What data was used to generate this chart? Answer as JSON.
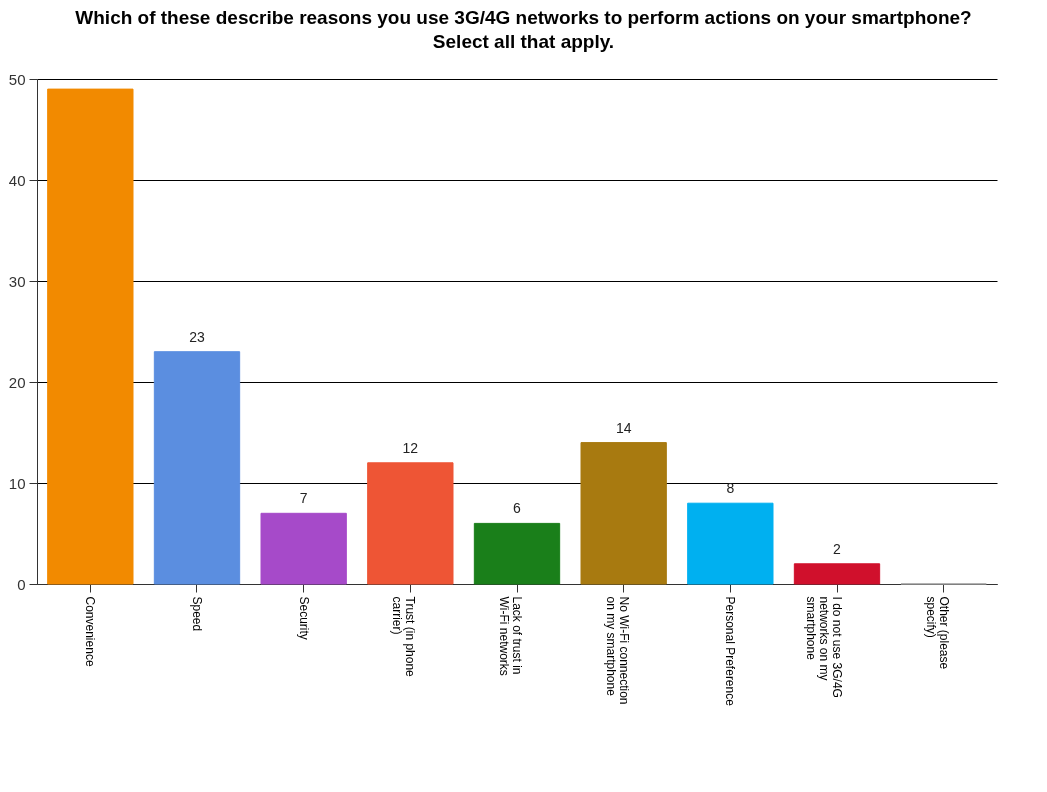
{
  "chart_data": {
    "type": "bar",
    "title": "Which of these describe reasons you use 3G/4G networks to perform actions on your smartphone? Select all that apply.",
    "categories": [
      "Convenience",
      "Speed",
      "Security",
      "Trust (in phone carrier)",
      "Lack of trust in Wi-Fi networks",
      "No Wi-Fi connection on my smartphone",
      "Personal Preference",
      "I do not use 3G/4G networks on my smartphone",
      "Other (please specify)"
    ],
    "values": [
      49,
      23,
      7,
      12,
      6,
      14,
      8,
      2,
      0
    ],
    "colors": [
      "#f28a00",
      "#5b8ee0",
      "#a64ac9",
      "#ee5535",
      "#1a7f1a",
      "#a87a10",
      "#00b0f0",
      "#d0102c",
      "#999999"
    ],
    "value_labels": [
      null,
      "23",
      "7",
      "12",
      "6",
      "14",
      "8",
      "2",
      null
    ],
    "ylim": [
      0,
      50
    ],
    "yticks": [
      0,
      10,
      20,
      30,
      40,
      50
    ],
    "grid": "y"
  }
}
